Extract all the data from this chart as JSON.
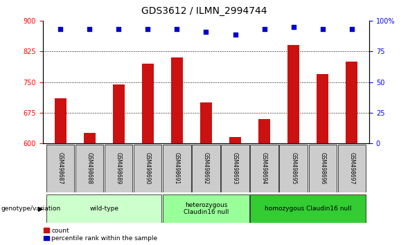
{
  "title": "GDS3612 / ILMN_2994744",
  "samples": [
    "GSM498687",
    "GSM498688",
    "GSM498689",
    "GSM498690",
    "GSM498691",
    "GSM498692",
    "GSM498693",
    "GSM498694",
    "GSM498695",
    "GSM498696",
    "GSM498697"
  ],
  "bar_values": [
    710,
    625,
    745,
    795,
    810,
    700,
    615,
    660,
    840,
    770,
    800
  ],
  "percentile_values": [
    93,
    93,
    93,
    93,
    93,
    91,
    89,
    93,
    95,
    93,
    93
  ],
  "ylim_left": [
    600,
    900
  ],
  "ylim_right": [
    0,
    100
  ],
  "yticks_left": [
    600,
    675,
    750,
    825,
    900
  ],
  "yticks_right": [
    0,
    25,
    50,
    75,
    100
  ],
  "bar_color": "#cc1111",
  "dot_color": "#0000cc",
  "groups": [
    {
      "label": "wild-type",
      "start": 0,
      "end": 3,
      "color": "#ccffcc"
    },
    {
      "label": "heterozygous\nClaudin16 null",
      "start": 4,
      "end": 6,
      "color": "#99ff99"
    },
    {
      "label": "homozygous Claudin16 null",
      "start": 7,
      "end": 10,
      "color": "#44cc44"
    }
  ],
  "genotype_label": "genotype/variation",
  "legend_count_label": "count",
  "legend_pct_label": "percentile rank within the sample",
  "title_fontsize": 10,
  "tick_fontsize": 7,
  "label_fontsize": 7,
  "sample_box_color": "#cccccc",
  "grid_dotted_values": [
    675,
    750,
    825
  ],
  "bar_width": 0.4
}
